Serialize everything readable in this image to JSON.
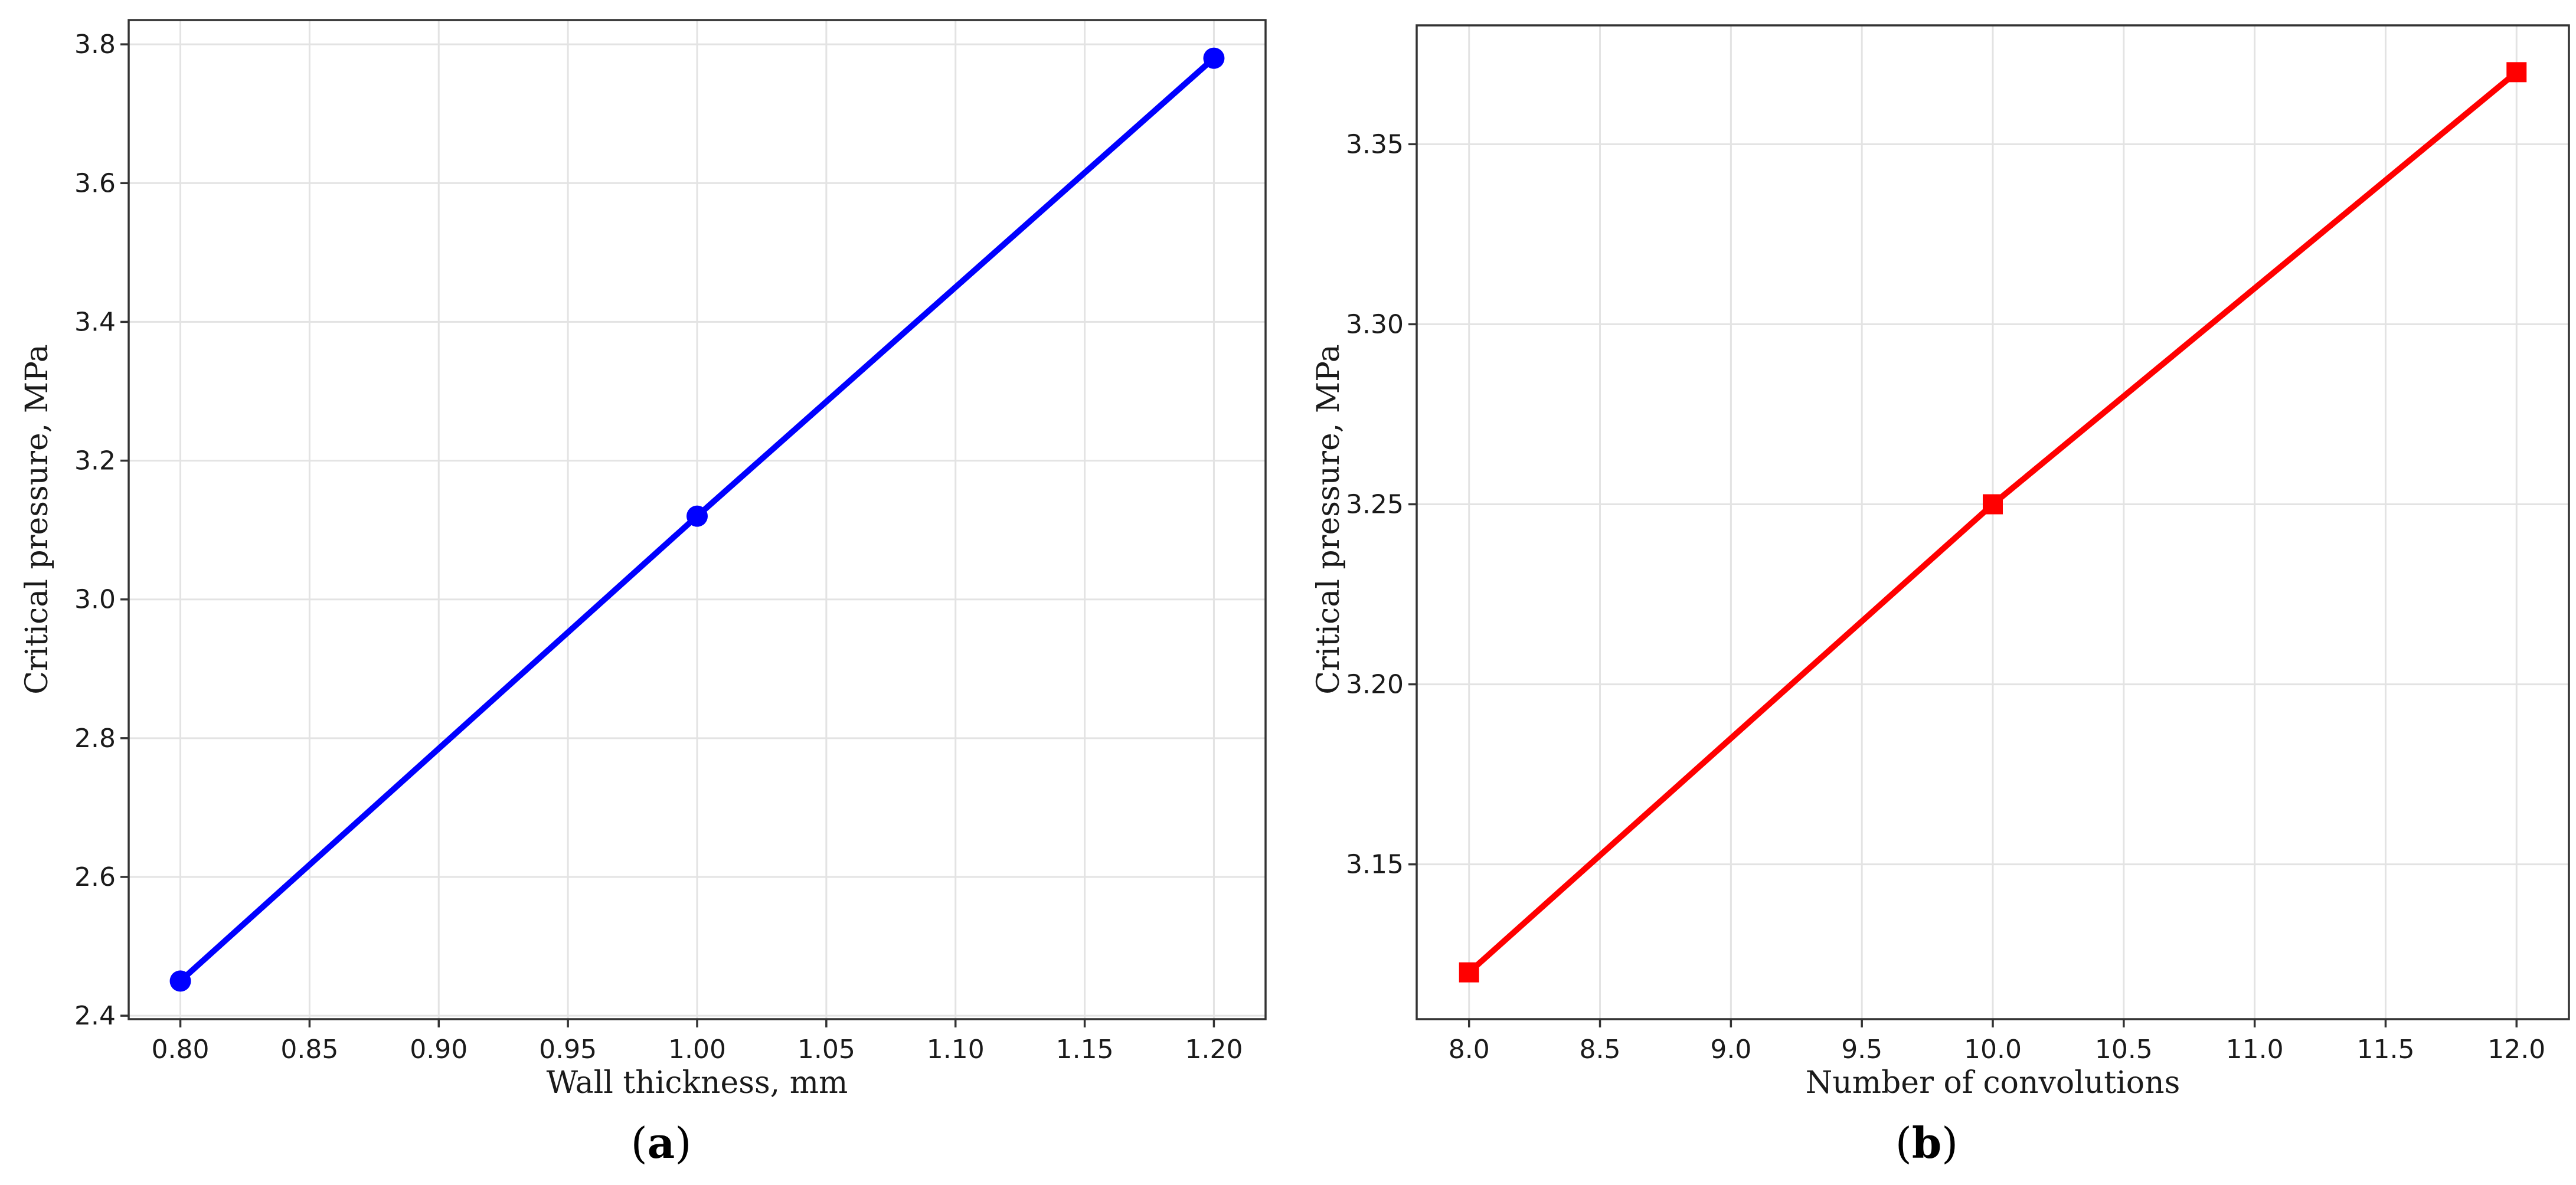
{
  "chart_data": [
    {
      "type": "line",
      "panel": "a",
      "xlabel": "Wall thickness, mm",
      "ylabel": "Critical pressure, MPa",
      "xlim": [
        0.78,
        1.22
      ],
      "ylim": [
        2.395,
        3.835
      ],
      "x_ticks": [
        0.8,
        0.85,
        0.9,
        0.95,
        1.0,
        1.05,
        1.1,
        1.15,
        1.2
      ],
      "x_tick_labels": [
        "0.80",
        "0.85",
        "0.90",
        "0.95",
        "1.00",
        "1.05",
        "1.10",
        "1.15",
        "1.20"
      ],
      "y_ticks": [
        2.4,
        2.6,
        2.8,
        3.0,
        3.2,
        3.4,
        3.6,
        3.8
      ],
      "y_tick_labels": [
        "2.4",
        "2.6",
        "2.8",
        "3.0",
        "3.2",
        "3.4",
        "3.6",
        "3.8"
      ],
      "grid": true,
      "series": [
        {
          "x": [
            0.8,
            1.0,
            1.2
          ],
          "y": [
            2.45,
            3.12,
            3.78
          ],
          "color": "#0000ff",
          "marker": "circle"
        }
      ]
    },
    {
      "type": "line",
      "panel": "b",
      "xlabel": "Number of convolutions",
      "ylabel": "Critical pressure, MPa",
      "xlim": [
        7.8,
        12.2
      ],
      "ylim": [
        3.107,
        3.383
      ],
      "x_ticks": [
        8.0,
        8.5,
        9.0,
        9.5,
        10.0,
        10.5,
        11.0,
        11.5,
        12.0
      ],
      "x_tick_labels": [
        "8.0",
        "8.5",
        "9.0",
        "9.5",
        "10.0",
        "10.5",
        "11.0",
        "11.5",
        "12.0"
      ],
      "y_ticks": [
        3.15,
        3.2,
        3.25,
        3.3,
        3.35
      ],
      "y_tick_labels": [
        "3.15",
        "3.20",
        "3.25",
        "3.30",
        "3.35"
      ],
      "grid": true,
      "series": [
        {
          "x": [
            8,
            10,
            12
          ],
          "y": [
            3.12,
            3.25,
            3.37
          ],
          "color": "#ff0000",
          "marker": "square"
        }
      ]
    }
  ],
  "captions": {
    "a": {
      "open": "(",
      "letter": "a",
      "close": ")"
    },
    "b": {
      "open": "(",
      "letter": "b",
      "close": ")"
    }
  }
}
